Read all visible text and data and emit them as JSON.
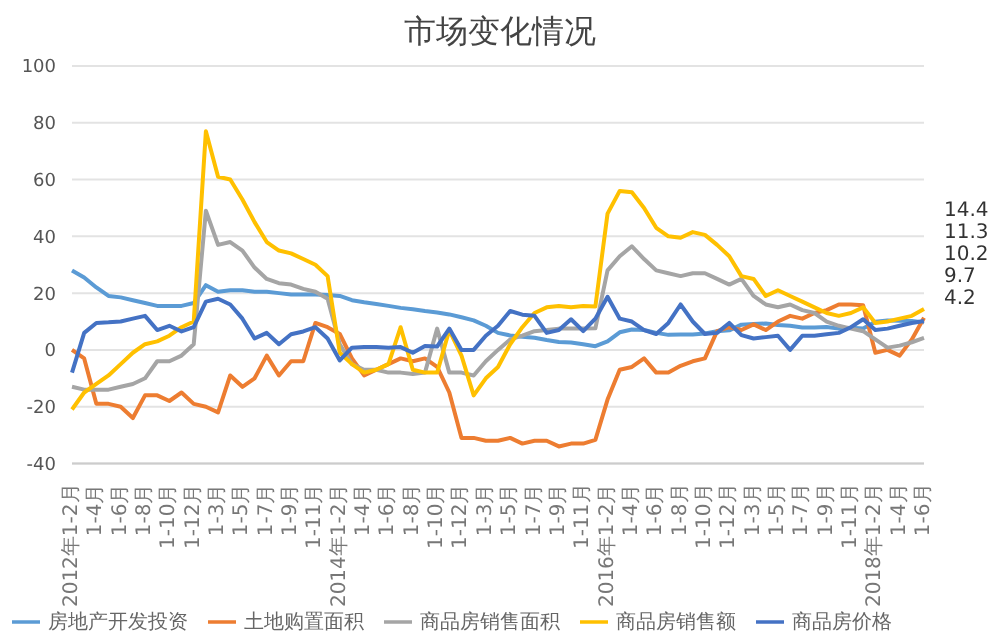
{
  "chart_data": {
    "type": "line",
    "title": "市场变化情况",
    "categories": [
      "2012年1-2月",
      null,
      "1-4月",
      null,
      "1-6月",
      null,
      "1-8月",
      null,
      "1-10月",
      null,
      "1-12月",
      null,
      "1-3月",
      null,
      "1-5月",
      null,
      "1-7月",
      null,
      "1-9月",
      null,
      "1-11月",
      null,
      "2014年1-2月",
      null,
      "1-4月",
      null,
      "1-6月",
      null,
      "1-8月",
      null,
      "1-10月",
      null,
      "1-12月",
      null,
      "1-3月",
      null,
      "1-5月",
      null,
      "1-7月",
      null,
      "1-9月",
      null,
      "1-11月",
      null,
      "2016年1-2月",
      null,
      "1-4月",
      null,
      "1-6月",
      null,
      "1-8月",
      null,
      "1-10月",
      null,
      "1-12月",
      null,
      "1-3月",
      null,
      "1-5月",
      null,
      "1-7月",
      null,
      "1-9月",
      null,
      "1-11月",
      null,
      "2018年1-2月",
      null,
      "1-4月",
      null,
      "1-6月"
    ],
    "series": [
      {
        "name": "房地产开发投资",
        "color": "#5b9bd5",
        "values": [
          28,
          25.5,
          22,
          19,
          18.5,
          17.5,
          16.5,
          15.5,
          15.5,
          15.5,
          16.5,
          22.8,
          20.5,
          21,
          21,
          20.5,
          20.5,
          20,
          19.5,
          19.5,
          19.5,
          19.3,
          19,
          17.5,
          16.8,
          16.2,
          15.5,
          14.8,
          14.3,
          13.7,
          13.2,
          12.5,
          11.5,
          10.4,
          8.5,
          6,
          5.1,
          4.6,
          4.3,
          3.5,
          2.8,
          2.6,
          2,
          1.3,
          3,
          6.2,
          7.2,
          7,
          6,
          5.3,
          5.4,
          5.4,
          5.8,
          6.6,
          6.9,
          8.9,
          9.1,
          9.3,
          8.8,
          8.5,
          7.9,
          7.9,
          8.1,
          7.5,
          7.8,
          7.5,
          9.9,
          10.4,
          10.3,
          10.2,
          9.7
        ]
      },
      {
        "name": "土地购置面积",
        "color": "#ed7d31",
        "values": [
          0,
          -3,
          -19,
          -19,
          -20,
          -24,
          -16,
          -16,
          -18,
          -15,
          -19,
          -20,
          -22,
          -9,
          -13,
          -10,
          -2,
          -9,
          -4,
          -4,
          9.5,
          8,
          5.6,
          -3,
          -9,
          -7,
          -5,
          -3,
          -4,
          -3,
          -6,
          -15,
          -31,
          -31,
          -32,
          -32,
          -31,
          -33,
          -32,
          -32,
          -34,
          -33,
          -33,
          -31.7,
          -17.5,
          -7,
          -6,
          -3,
          -8,
          -8,
          -5.6,
          -4,
          -3,
          6.6,
          8,
          7,
          9,
          7,
          10,
          12,
          11,
          13,
          14,
          16,
          16,
          15.7,
          -1,
          0,
          -2,
          3.7,
          11.3
        ]
      },
      {
        "name": "商品房销售面积",
        "color": "#a5a5a5",
        "values": [
          -13,
          -14,
          -14,
          -14,
          -13,
          -12,
          -10,
          -4,
          -4,
          -2,
          2,
          49,
          37,
          38,
          35,
          29,
          25,
          23.5,
          23,
          21.5,
          20.5,
          18,
          2,
          -5,
          -7,
          -7,
          -8,
          -8,
          -8.5,
          -8,
          7.5,
          -8,
          -8,
          -9,
          -4,
          0,
          3.7,
          5,
          6.6,
          7,
          7.5,
          7.5,
          7.5,
          7.6,
          28,
          33,
          36.5,
          32,
          28,
          27,
          26,
          27,
          27,
          25,
          23,
          25,
          19,
          16,
          15,
          16,
          14,
          13,
          10,
          8.5,
          7.5,
          6.6,
          3.7,
          0.8,
          1.5,
          2.7,
          4.2
        ]
      },
      {
        "name": "商品房销售额",
        "color": "#ffc000",
        "values": [
          -21,
          -15,
          -12,
          -9,
          -5,
          -1,
          2,
          3,
          5,
          8,
          10,
          77,
          61,
          60,
          53,
          45,
          38,
          35,
          34,
          32,
          30,
          26,
          -1,
          -5,
          -8,
          -7,
          -5,
          8,
          -7,
          -8,
          -8,
          7,
          -2,
          -16,
          -10,
          -6,
          2,
          8,
          13,
          15,
          15.5,
          15,
          15.5,
          15.3,
          48,
          56,
          55.5,
          50,
          43,
          40,
          39.5,
          41.5,
          40.5,
          37,
          33,
          26,
          25,
          19,
          21,
          19,
          17,
          15,
          13,
          12,
          13,
          15,
          9.5,
          10,
          11,
          12,
          14.4
        ]
      },
      {
        "name": "商品房价格",
        "color": "#4472c4",
        "values": [
          -8,
          6,
          9.5,
          9.7,
          10,
          11,
          12,
          7,
          8.5,
          6.5,
          8,
          17,
          18,
          16,
          11,
          4,
          6,
          2,
          5.5,
          6.5,
          8,
          4,
          -3.7,
          0.8,
          1,
          1,
          0.8,
          1,
          -1,
          1.4,
          1.2,
          7.5,
          0,
          0,
          5,
          8.5,
          13.7,
          12.4,
          12,
          6,
          7,
          10.8,
          6.6,
          11,
          18.7,
          11,
          10,
          7,
          5.6,
          9.5,
          16,
          10,
          5.6,
          6,
          9.5,
          5.2,
          4,
          4.5,
          5,
          0,
          5,
          5,
          5.5,
          6,
          8,
          10.8,
          7,
          7.5,
          8.5,
          9.5,
          10.2
        ]
      }
    ],
    "annotations": [
      "14.4",
      "11.3",
      "10.2",
      "9.7",
      "4.2"
    ],
    "ylim": [
      -40,
      100
    ],
    "yticks": [
      -40,
      -20,
      0,
      20,
      40,
      60,
      80,
      100
    ],
    "grid": "y",
    "legend": "bottom",
    "marker": "none",
    "line_style": "solid"
  }
}
